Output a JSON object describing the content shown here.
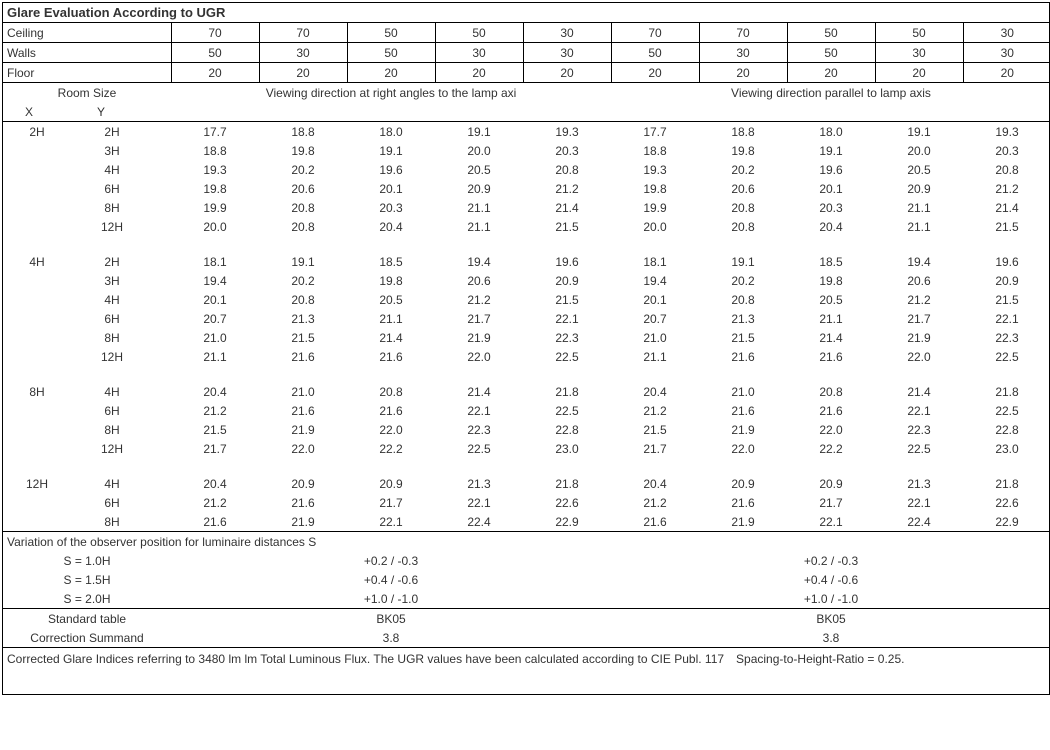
{
  "title": "Glare Evaluation According to UGR",
  "header_labels": {
    "ceiling": "Ceiling",
    "walls": "Walls",
    "floor": "Floor"
  },
  "ceiling": [
    "70",
    "70",
    "50",
    "50",
    "30",
    "70",
    "70",
    "50",
    "50",
    "30"
  ],
  "walls": [
    "50",
    "30",
    "50",
    "30",
    "30",
    "50",
    "30",
    "50",
    "30",
    "30"
  ],
  "floor": [
    "20",
    "20",
    "20",
    "20",
    "20",
    "20",
    "20",
    "20",
    "20",
    "20"
  ],
  "room_size_label": "Room Size",
  "room_x": "X",
  "room_y": "Y",
  "view_right": "Viewing direction at right angles to the lamp axi",
  "view_parallel": "Viewing direction parallel to lamp axis",
  "groups": [
    {
      "x": "2H",
      "rows": [
        {
          "y": "2H",
          "v": [
            "17.7",
            "18.8",
            "18.0",
            "19.1",
            "19.3",
            "17.7",
            "18.8",
            "18.0",
            "19.1",
            "19.3"
          ]
        },
        {
          "y": "3H",
          "v": [
            "18.8",
            "19.8",
            "19.1",
            "20.0",
            "20.3",
            "18.8",
            "19.8",
            "19.1",
            "20.0",
            "20.3"
          ]
        },
        {
          "y": "4H",
          "v": [
            "19.3",
            "20.2",
            "19.6",
            "20.5",
            "20.8",
            "19.3",
            "20.2",
            "19.6",
            "20.5",
            "20.8"
          ]
        },
        {
          "y": "6H",
          "v": [
            "19.8",
            "20.6",
            "20.1",
            "20.9",
            "21.2",
            "19.8",
            "20.6",
            "20.1",
            "20.9",
            "21.2"
          ]
        },
        {
          "y": "8H",
          "v": [
            "19.9",
            "20.8",
            "20.3",
            "21.1",
            "21.4",
            "19.9",
            "20.8",
            "20.3",
            "21.1",
            "21.4"
          ]
        },
        {
          "y": "12H",
          "v": [
            "20.0",
            "20.8",
            "20.4",
            "21.1",
            "21.5",
            "20.0",
            "20.8",
            "20.4",
            "21.1",
            "21.5"
          ]
        }
      ]
    },
    {
      "x": "4H",
      "rows": [
        {
          "y": "2H",
          "v": [
            "18.1",
            "19.1",
            "18.5",
            "19.4",
            "19.6",
            "18.1",
            "19.1",
            "18.5",
            "19.4",
            "19.6"
          ]
        },
        {
          "y": "3H",
          "v": [
            "19.4",
            "20.2",
            "19.8",
            "20.6",
            "20.9",
            "19.4",
            "20.2",
            "19.8",
            "20.6",
            "20.9"
          ]
        },
        {
          "y": "4H",
          "v": [
            "20.1",
            "20.8",
            "20.5",
            "21.2",
            "21.5",
            "20.1",
            "20.8",
            "20.5",
            "21.2",
            "21.5"
          ]
        },
        {
          "y": "6H",
          "v": [
            "20.7",
            "21.3",
            "21.1",
            "21.7",
            "22.1",
            "20.7",
            "21.3",
            "21.1",
            "21.7",
            "22.1"
          ]
        },
        {
          "y": "8H",
          "v": [
            "21.0",
            "21.5",
            "21.4",
            "21.9",
            "22.3",
            "21.0",
            "21.5",
            "21.4",
            "21.9",
            "22.3"
          ]
        },
        {
          "y": "12H",
          "v": [
            "21.1",
            "21.6",
            "21.6",
            "22.0",
            "22.5",
            "21.1",
            "21.6",
            "21.6",
            "22.0",
            "22.5"
          ]
        }
      ]
    },
    {
      "x": "8H",
      "rows": [
        {
          "y": "4H",
          "v": [
            "20.4",
            "21.0",
            "20.8",
            "21.4",
            "21.8",
            "20.4",
            "21.0",
            "20.8",
            "21.4",
            "21.8"
          ]
        },
        {
          "y": "6H",
          "v": [
            "21.2",
            "21.6",
            "21.6",
            "22.1",
            "22.5",
            "21.2",
            "21.6",
            "21.6",
            "22.1",
            "22.5"
          ]
        },
        {
          "y": "8H",
          "v": [
            "21.5",
            "21.9",
            "22.0",
            "22.3",
            "22.8",
            "21.5",
            "21.9",
            "22.0",
            "22.3",
            "22.8"
          ]
        },
        {
          "y": "12H",
          "v": [
            "21.7",
            "22.0",
            "22.2",
            "22.5",
            "23.0",
            "21.7",
            "22.0",
            "22.2",
            "22.5",
            "23.0"
          ]
        }
      ]
    },
    {
      "x": "12H",
      "rows": [
        {
          "y": "4H",
          "v": [
            "20.4",
            "20.9",
            "20.9",
            "21.3",
            "21.8",
            "20.4",
            "20.9",
            "20.9",
            "21.3",
            "21.8"
          ]
        },
        {
          "y": "6H",
          "v": [
            "21.2",
            "21.6",
            "21.7",
            "22.1",
            "22.6",
            "21.2",
            "21.6",
            "21.7",
            "22.1",
            "22.6"
          ]
        },
        {
          "y": "8H",
          "v": [
            "21.6",
            "21.9",
            "22.1",
            "22.4",
            "22.9",
            "21.6",
            "21.9",
            "22.1",
            "22.4",
            "22.9"
          ]
        }
      ]
    }
  ],
  "variation_title": "Variation of the observer position for luminaire distances S",
  "variation_rows": [
    {
      "label": "S = 1.0H",
      "left": "+0.2 / -0.3",
      "right": "+0.2 / -0.3"
    },
    {
      "label": "S = 1.5H",
      "left": "+0.4 / -0.6",
      "right": "+0.4 / -0.6"
    },
    {
      "label": "S = 2.0H",
      "left": "+1.0 / -1.0",
      "right": "+1.0 / -1.0"
    }
  ],
  "standard_table_label": "Standard table",
  "standard_table_left": "BK05",
  "standard_table_right": "BK05",
  "correction_label": "Correction Summand",
  "correction_left": "3.8",
  "correction_right": "3.8",
  "footnote": "Corrected Glare Indices referring to 3480 lm lm Total Luminous Flux. The UGR values have been calculated according to CIE Publ. 117 Spacing-to-Height-Ratio = 0.25."
}
